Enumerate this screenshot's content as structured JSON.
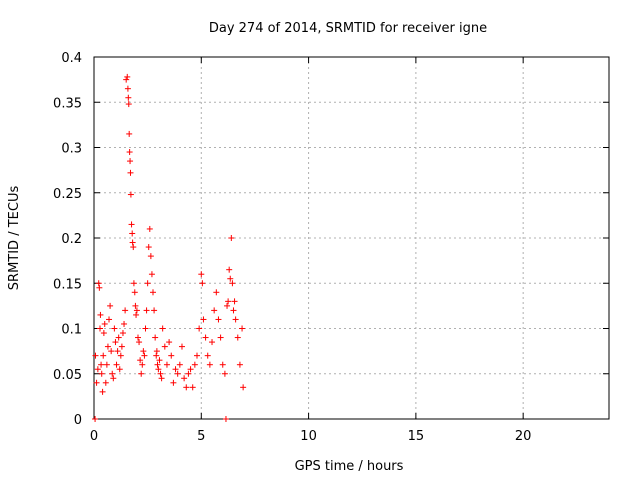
{
  "chart_data": {
    "type": "scatter",
    "title": "Day 274 of 2014, SRMTID for receiver igne",
    "xlabel": "GPS time / hours",
    "ylabel": "SRMTID / TECUs",
    "xlim": [
      0,
      24
    ],
    "ylim": [
      0,
      0.4
    ],
    "x_ticks": [
      0,
      5,
      10,
      15,
      20
    ],
    "x_tick_labels": [
      "0",
      "5",
      "10",
      "15",
      "20"
    ],
    "y_ticks": [
      0,
      0.05,
      0.1,
      0.15,
      0.2,
      0.25,
      0.3,
      0.35,
      0.4
    ],
    "y_tick_labels": [
      "0",
      "0.05",
      "0.1",
      "0.15",
      "0.2",
      "0.25",
      "0.3",
      "0.35",
      "0.4"
    ],
    "grid": true,
    "legend": "none",
    "marker": "plus",
    "colors": {
      "series": "#ff0000",
      "grid": "#b0b0b0",
      "axis": "#000000"
    },
    "series": [
      {
        "x": [
          0.05,
          0.07,
          0.12,
          0.18,
          0.22,
          0.25,
          0.28,
          0.3,
          0.33,
          0.36,
          0.4,
          0.43,
          0.46,
          0.5,
          0.55,
          0.6,
          0.65,
          0.7,
          0.75,
          0.8,
          0.85,
          0.9,
          0.95,
          1.0,
          1.05,
          1.1,
          1.15,
          1.2,
          1.25,
          1.3,
          1.35,
          1.4,
          1.45,
          1.5,
          1.55,
          1.58,
          1.6,
          1.62,
          1.64,
          1.66,
          1.68,
          1.7,
          1.72,
          1.75,
          1.78,
          1.8,
          1.83,
          1.86,
          1.9,
          1.93,
          1.96,
          2.0,
          2.05,
          2.1,
          2.15,
          2.2,
          2.25,
          2.3,
          2.35,
          2.4,
          2.45,
          2.5,
          2.55,
          2.6,
          2.65,
          2.7,
          2.75,
          2.8,
          2.85,
          2.9,
          2.93,
          2.96,
          3.0,
          3.05,
          3.1,
          3.15,
          3.2,
          3.3,
          3.4,
          3.5,
          3.6,
          3.7,
          3.8,
          3.9,
          4.0,
          4.1,
          4.2,
          4.3,
          4.4,
          4.5,
          4.6,
          4.7,
          4.8,
          4.9,
          5.0,
          5.05,
          5.1,
          5.2,
          5.3,
          5.4,
          5.5,
          5.6,
          5.7,
          5.8,
          5.9,
          6.0,
          6.1,
          6.15,
          6.2,
          6.25,
          6.3,
          6.35,
          6.4,
          6.45,
          6.5,
          6.55,
          6.6,
          6.7,
          6.8,
          6.9,
          6.95
        ],
        "y": [
          0.0,
          0.07,
          0.04,
          0.055,
          0.15,
          0.145,
          0.1,
          0.115,
          0.06,
          0.05,
          0.03,
          0.07,
          0.095,
          0.105,
          0.04,
          0.06,
          0.08,
          0.11,
          0.125,
          0.075,
          0.05,
          0.045,
          0.1,
          0.085,
          0.06,
          0.075,
          0.09,
          0.055,
          0.07,
          0.08,
          0.095,
          0.105,
          0.12,
          0.375,
          0.378,
          0.365,
          0.355,
          0.348,
          0.315,
          0.295,
          0.285,
          0.272,
          0.248,
          0.215,
          0.205,
          0.195,
          0.19,
          0.15,
          0.14,
          0.125,
          0.115,
          0.12,
          0.09,
          0.085,
          0.065,
          0.05,
          0.06,
          0.075,
          0.07,
          0.1,
          0.12,
          0.15,
          0.19,
          0.21,
          0.18,
          0.16,
          0.14,
          0.12,
          0.09,
          0.07,
          0.075,
          0.06,
          0.055,
          0.065,
          0.05,
          0.045,
          0.1,
          0.08,
          0.06,
          0.085,
          0.07,
          0.04,
          0.055,
          0.05,
          0.06,
          0.08,
          0.045,
          0.035,
          0.05,
          0.055,
          0.035,
          0.06,
          0.07,
          0.1,
          0.16,
          0.15,
          0.11,
          0.09,
          0.07,
          0.06,
          0.085,
          0.12,
          0.14,
          0.11,
          0.09,
          0.06,
          0.05,
          0.0,
          0.125,
          0.13,
          0.165,
          0.155,
          0.2,
          0.15,
          0.12,
          0.13,
          0.11,
          0.09,
          0.06,
          0.1,
          0.035
        ]
      }
    ]
  }
}
